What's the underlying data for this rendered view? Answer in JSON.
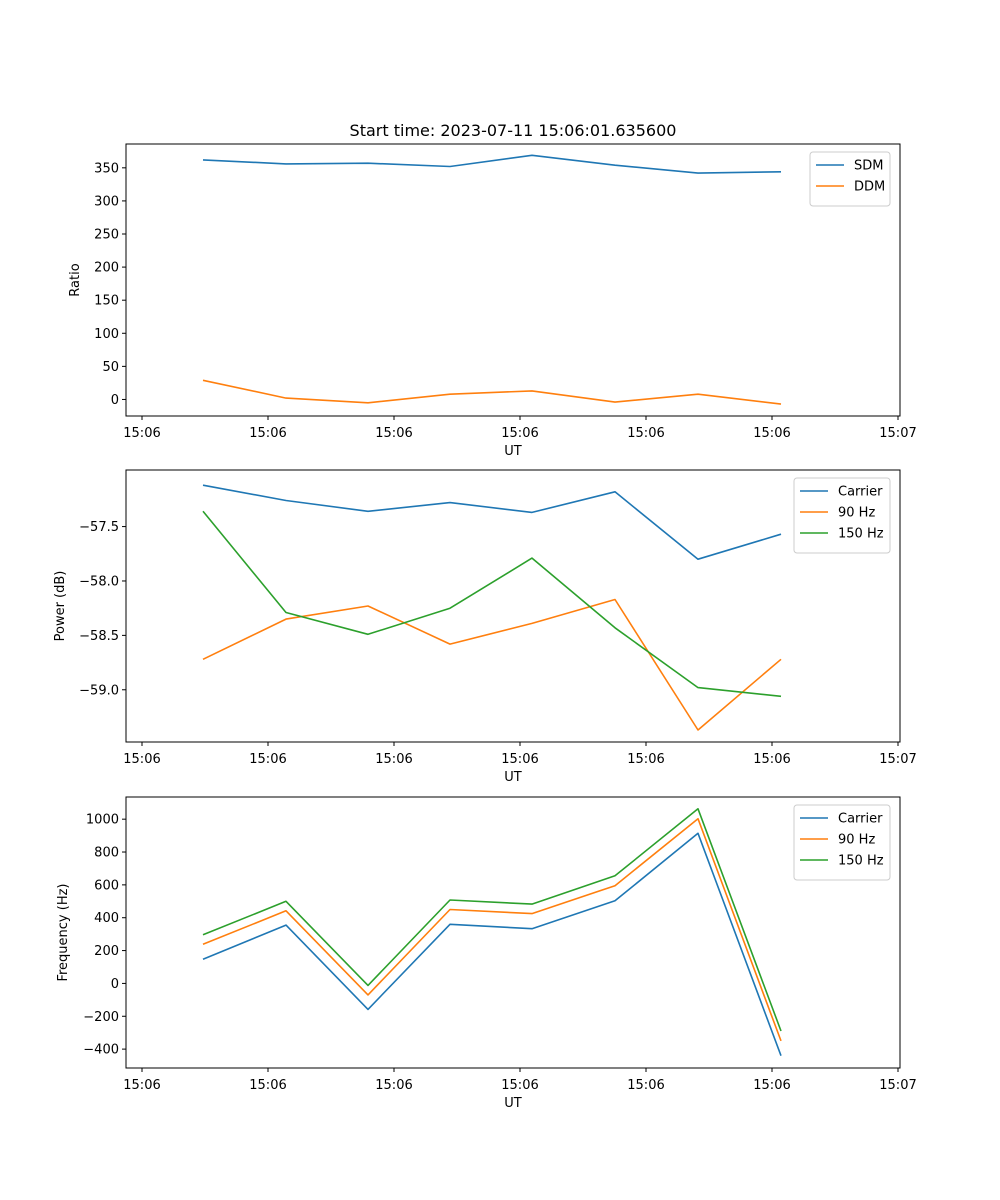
{
  "figure_title": "Start time: 2023-07-11 15:06:01.635600",
  "chart_data": [
    {
      "type": "line",
      "title": "Start time: 2023-07-11 15:06:01.635600",
      "xlabel": "UT",
      "ylabel": "Ratio",
      "x_tick_labels": [
        "15:06",
        "15:06",
        "15:06",
        "15:06",
        "15:06",
        "15:06",
        "15:07"
      ],
      "ylim": [
        -25,
        386
      ],
      "yticks": [
        0,
        50,
        100,
        150,
        200,
        250,
        300,
        350
      ],
      "ytick_labels": [
        "0",
        "50",
        "100",
        "150",
        "200",
        "250",
        "300",
        "350"
      ],
      "legend_position": "top-right",
      "series": [
        {
          "name": "SDM",
          "color": "#1f77b4",
          "values": [
            362,
            356,
            357,
            352,
            369,
            354,
            342,
            344
          ]
        },
        {
          "name": "DDM",
          "color": "#ff7f0e",
          "values": [
            29,
            2,
            -5,
            8,
            13,
            -4,
            8,
            -7
          ]
        }
      ]
    },
    {
      "type": "line",
      "title": "",
      "xlabel": "UT",
      "ylabel": "Power (dB)",
      "x_tick_labels": [
        "15:06",
        "15:06",
        "15:06",
        "15:06",
        "15:06",
        "15:06",
        "15:07"
      ],
      "ylim": [
        -59.48,
        -56.98
      ],
      "yticks": [
        -59.0,
        -58.5,
        -58.0,
        -57.5
      ],
      "ytick_labels": [
        "−59.0",
        "−58.5",
        "−58.0",
        "−57.5"
      ],
      "legend_position": "top-right",
      "series": [
        {
          "name": "Carrier",
          "color": "#1f77b4",
          "values": [
            -57.12,
            -57.26,
            -57.36,
            -57.28,
            -57.37,
            -57.18,
            -57.8,
            -57.57
          ]
        },
        {
          "name": "90 Hz",
          "color": "#ff7f0e",
          "values": [
            -58.72,
            -58.35,
            -58.23,
            -58.58,
            -58.39,
            -58.17,
            -59.37,
            -58.72
          ]
        },
        {
          "name": "150 Hz",
          "color": "#2ca02c",
          "values": [
            -57.36,
            -58.29,
            -58.49,
            -58.25,
            -57.79,
            -58.43,
            -58.98,
            -59.06
          ]
        }
      ]
    },
    {
      "type": "line",
      "title": "",
      "xlabel": "UT",
      "ylabel": "Frequency (Hz)",
      "x_tick_labels": [
        "15:06",
        "15:06",
        "15:06",
        "15:06",
        "15:06",
        "15:06",
        "15:07"
      ],
      "ylim": [
        -515,
        1135
      ],
      "yticks": [
        -400,
        -200,
        0,
        200,
        400,
        600,
        800,
        1000
      ],
      "ytick_labels": [
        "−400",
        "−200",
        "0",
        "200",
        "400",
        "600",
        "800",
        "1000"
      ],
      "legend_position": "top-right",
      "series": [
        {
          "name": "Carrier",
          "color": "#1f77b4",
          "values": [
            147,
            355,
            -158,
            360,
            333,
            503,
            914,
            -440
          ]
        },
        {
          "name": "90 Hz",
          "color": "#ff7f0e",
          "values": [
            238,
            442,
            -70,
            450,
            425,
            595,
            1003,
            -350
          ]
        },
        {
          "name": "150 Hz",
          "color": "#2ca02c",
          "values": [
            296,
            500,
            -12,
            508,
            483,
            655,
            1063,
            -290
          ]
        }
      ]
    }
  ]
}
